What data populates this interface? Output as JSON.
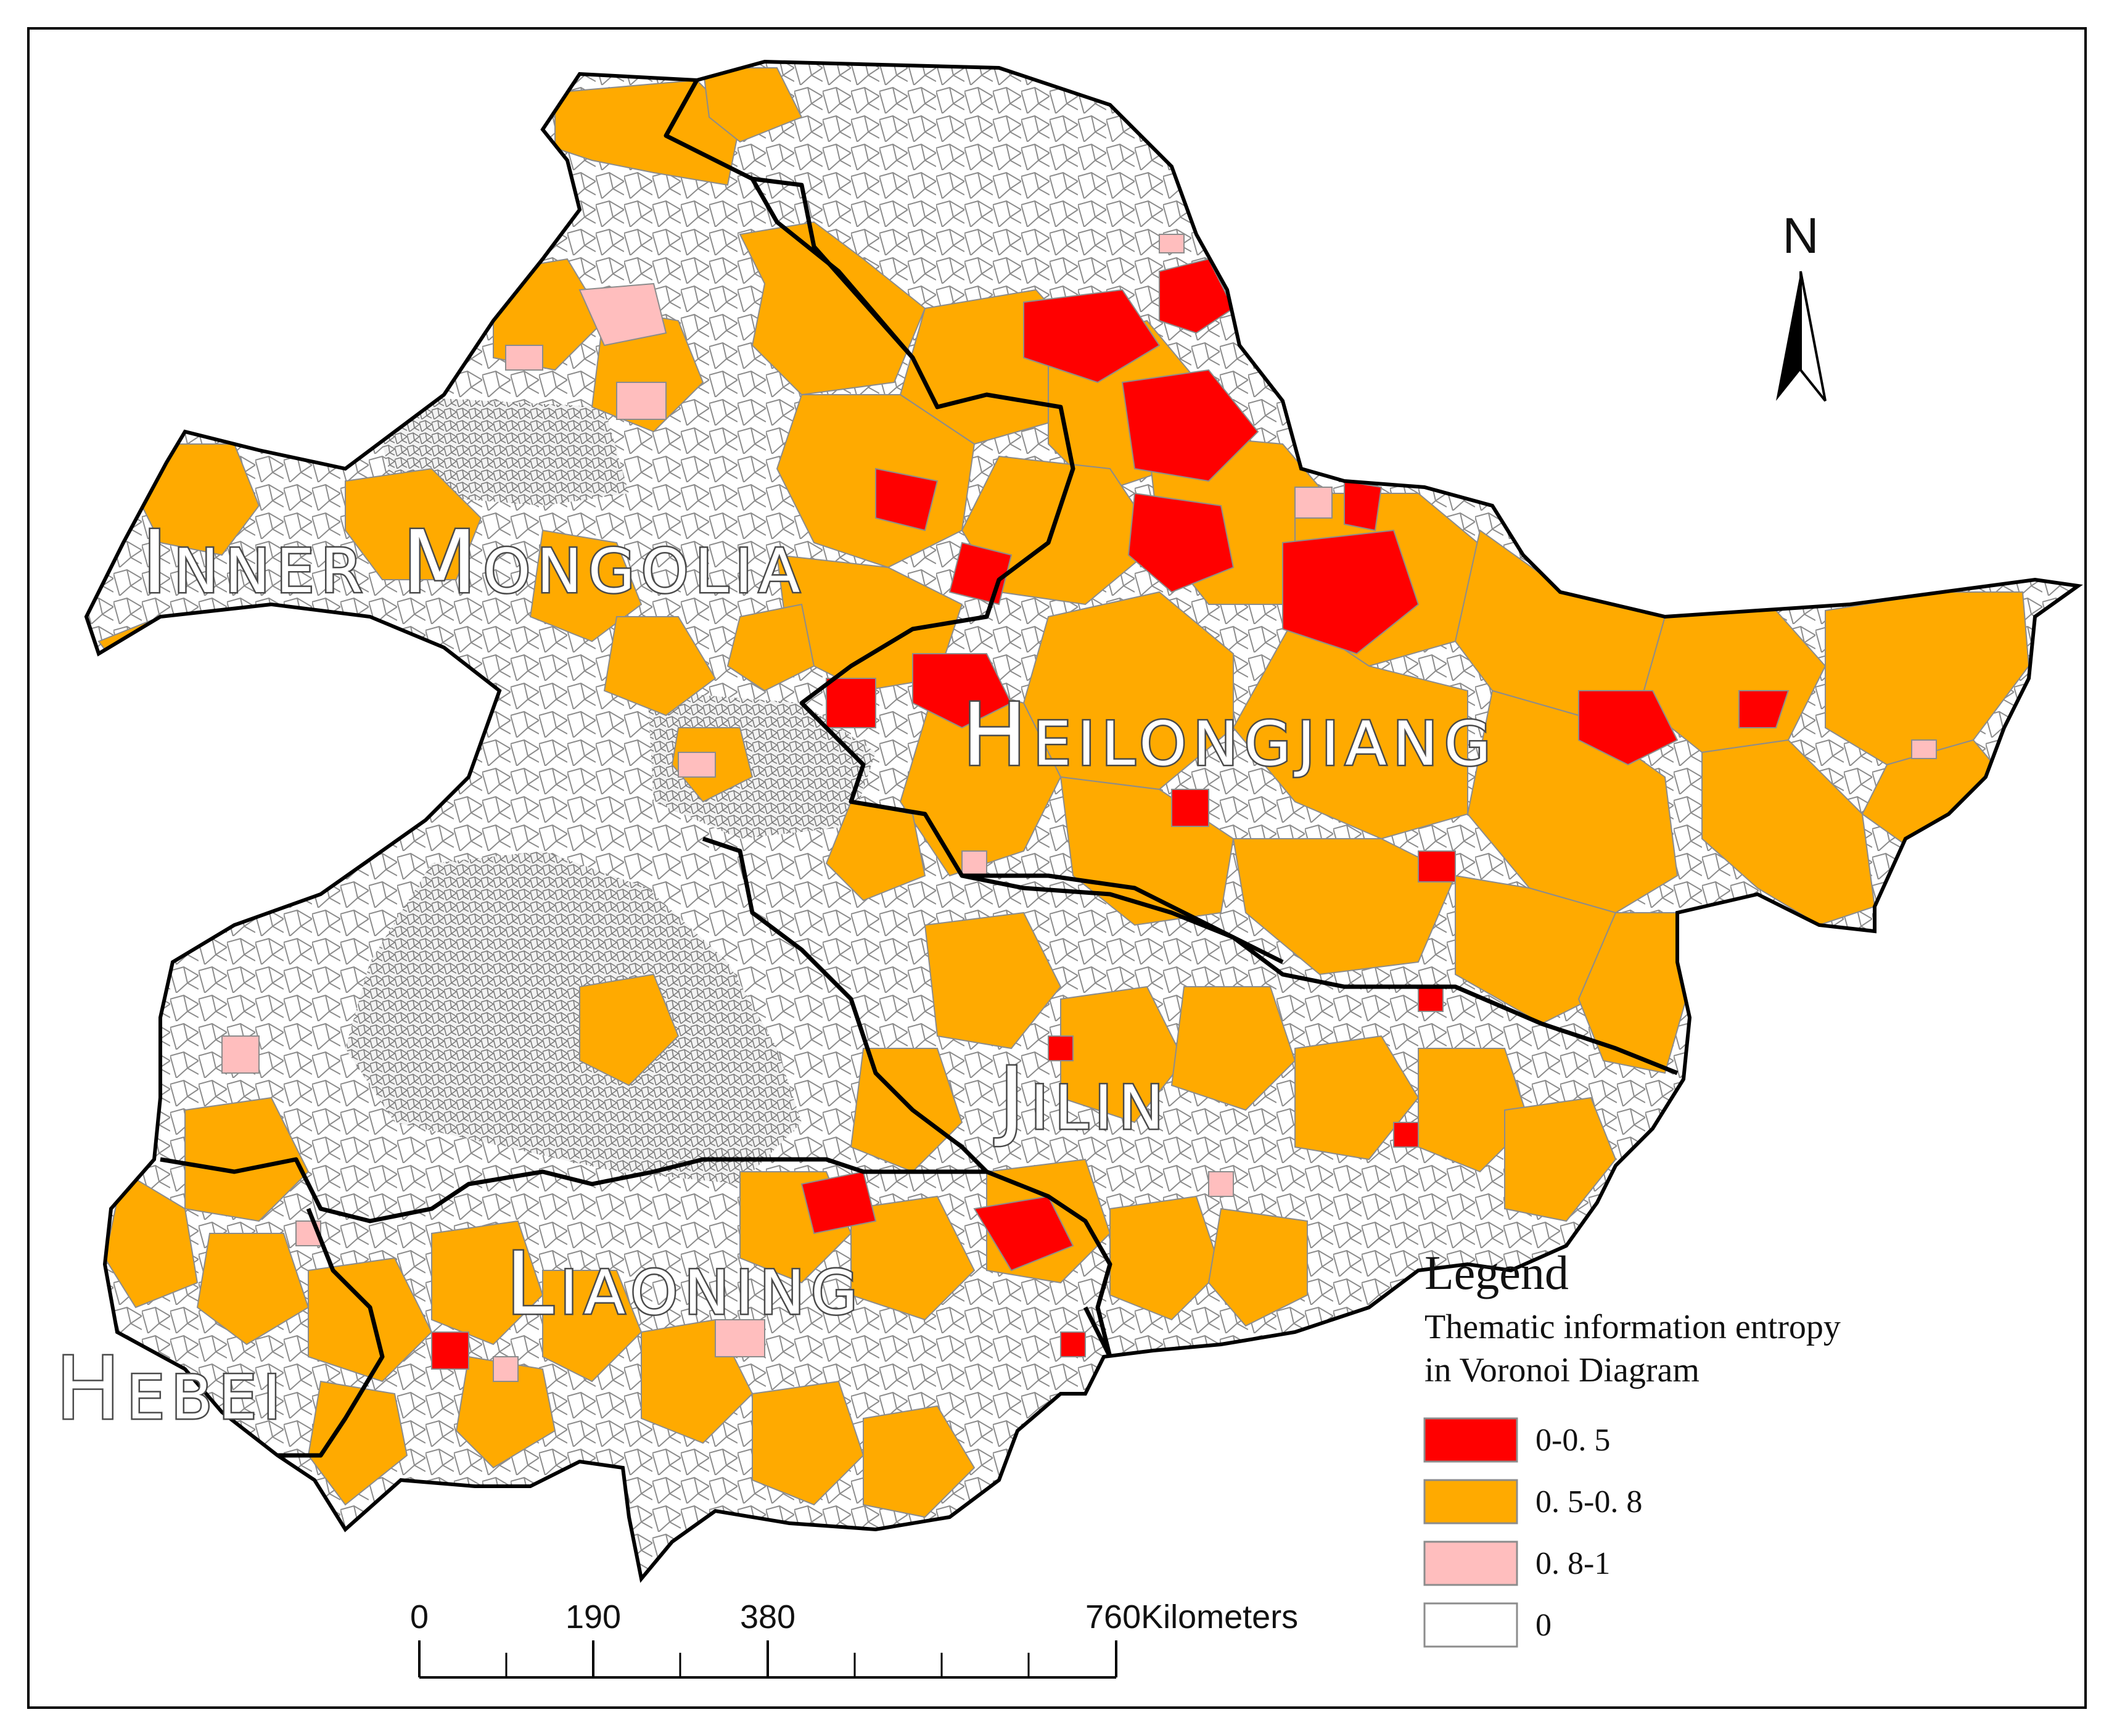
{
  "regions": [
    {
      "id": "inner-mongolia",
      "label": "Inner Mongolia"
    },
    {
      "id": "heilongjiang",
      "label": "Heilongjiang"
    },
    {
      "id": "jilin",
      "label": "Jilin"
    },
    {
      "id": "liaoning",
      "label": "Liaoning"
    },
    {
      "id": "hebei",
      "label": "Hebei"
    }
  ],
  "legend": {
    "title": "Legend",
    "subtitle_line1": "Thematic information entropy",
    "subtitle_line2": "in Voronoi Diagram",
    "classes": [
      {
        "label": "0-0. 5",
        "color": "#ff0000"
      },
      {
        "label": "0. 5-0. 8",
        "color": "#ffaa00"
      },
      {
        "label": "0. 8-1",
        "color": "#ffbebe"
      },
      {
        "label": "0",
        "color": "#ffffff"
      }
    ]
  },
  "north_arrow": {
    "label": "N"
  },
  "scale_bar": {
    "ticks": [
      "0",
      "190",
      "380",
      "760Kilometers"
    ],
    "unit": "Kilometers"
  }
}
